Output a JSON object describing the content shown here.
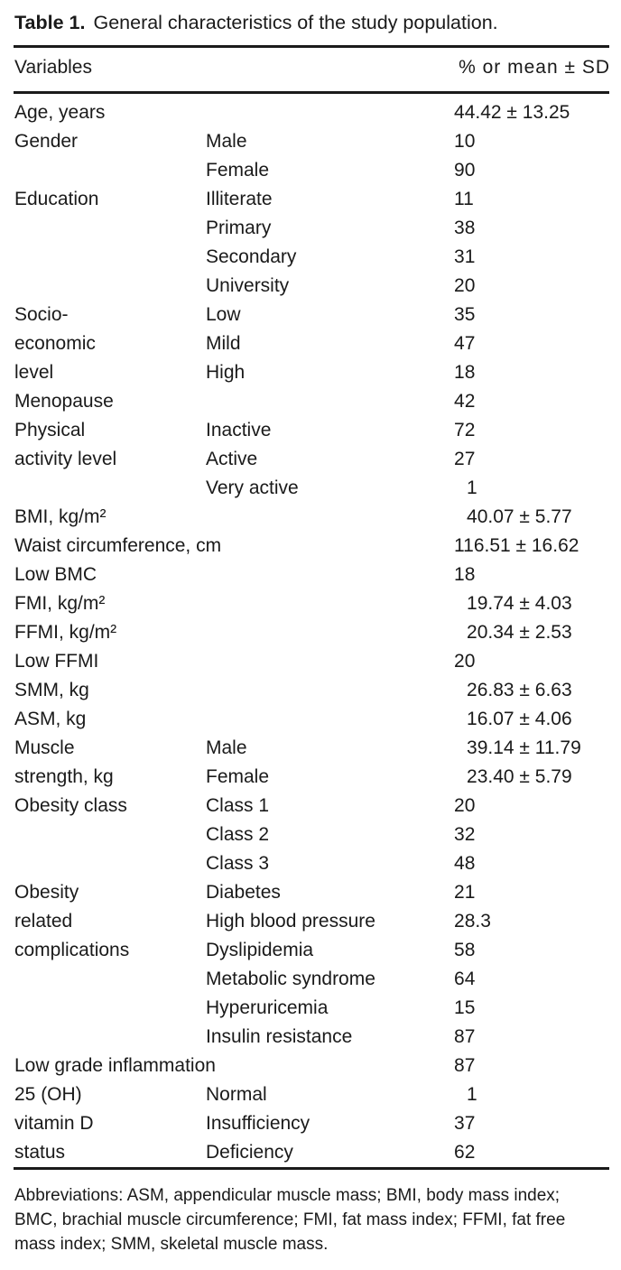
{
  "title": {
    "label": "Table 1.",
    "text": "General characteristics of the study population."
  },
  "header": {
    "col_variables": "Variables",
    "col_value": "% or mean ± SD"
  },
  "table": {
    "groups": [
      {
        "label": "Age, years",
        "span2": true,
        "rows": [
          {
            "val": "44.42 ± 13.25"
          }
        ]
      },
      {
        "label": "Gender",
        "rows": [
          {
            "sub": "Male",
            "val": "10"
          },
          {
            "sub": "Female",
            "val": "90"
          }
        ]
      },
      {
        "label": "Education",
        "rows": [
          {
            "sub": "Illiterate",
            "val": "11"
          },
          {
            "sub": "Primary",
            "val": "38"
          },
          {
            "sub": "Secondary",
            "val": "31"
          },
          {
            "sub": "University",
            "val": "20"
          }
        ]
      },
      {
        "label": "Socio-\neconomic\nlevel",
        "rows": [
          {
            "sub": "Low",
            "val": "35"
          },
          {
            "sub": "Mild",
            "val": "47"
          },
          {
            "sub": "High",
            "val": "18"
          }
        ]
      },
      {
        "label": "Menopause",
        "span2": true,
        "rows": [
          {
            "val": "42"
          }
        ]
      },
      {
        "label": "Physical\nactivity level",
        "rows": [
          {
            "sub": "Inactive",
            "val": "72"
          },
          {
            "sub": "Active",
            "val": "27"
          },
          {
            "sub": "Very active",
            "val": "1",
            "indent": true
          }
        ]
      },
      {
        "label": "BMI, kg/m²",
        "span2": true,
        "rows": [
          {
            "val": "40.07 ± 5.77",
            "indent": true
          }
        ]
      },
      {
        "label": "Waist circumference, cm",
        "span2": true,
        "rows": [
          {
            "val": "116.51 ± 16.62"
          }
        ]
      },
      {
        "label": "Low BMC",
        "span2": true,
        "rows": [
          {
            "val": "18"
          }
        ]
      },
      {
        "label": "FMI, kg/m²",
        "span2": true,
        "rows": [
          {
            "val": "19.74 ± 4.03",
            "indent": true
          }
        ]
      },
      {
        "label": "FFMI, kg/m²",
        "span2": true,
        "rows": [
          {
            "val": "20.34 ± 2.53",
            "indent": true
          }
        ]
      },
      {
        "label": "Low FFMI",
        "span2": true,
        "rows": [
          {
            "val": "20"
          }
        ]
      },
      {
        "label": "SMM, kg",
        "span2": true,
        "rows": [
          {
            "val": "26.83 ± 6.63",
            "indent": true
          }
        ]
      },
      {
        "label": "ASM, kg",
        "span2": true,
        "rows": [
          {
            "val": "16.07 ± 4.06",
            "indent": true
          }
        ]
      },
      {
        "label": "Muscle\nstrength, kg",
        "rows": [
          {
            "sub": "Male",
            "val": "39.14 ± 11.79",
            "indent": true
          },
          {
            "sub": "Female",
            "val": "23.40 ± 5.79",
            "indent": true
          }
        ]
      },
      {
        "label": "Obesity class",
        "rows": [
          {
            "sub": "Class 1",
            "val": "20"
          },
          {
            "sub": "Class 2",
            "val": "32"
          },
          {
            "sub": "Class 3",
            "val": "48"
          }
        ]
      },
      {
        "label": "Obesity\nrelated\ncomplications",
        "rows": [
          {
            "sub": "Diabetes",
            "val": "21"
          },
          {
            "sub": "High blood pressure",
            "val": "28.3"
          },
          {
            "sub": "Dyslipidemia",
            "val": "58"
          },
          {
            "sub": "Metabolic syndrome",
            "val": "64"
          },
          {
            "sub": "Hyperuricemia",
            "val": "15"
          },
          {
            "sub": "Insulin resistance",
            "val": "87"
          }
        ]
      },
      {
        "label": "Low grade inflammation",
        "span2": true,
        "rows": [
          {
            "val": "87"
          }
        ]
      },
      {
        "label": "25 (OH)\nvitamin D\nstatus",
        "rows": [
          {
            "sub": "Normal",
            "val": "1",
            "indent": true
          },
          {
            "sub": "Insufficiency",
            "val": "37"
          },
          {
            "sub": "Deficiency",
            "val": "62"
          }
        ]
      }
    ]
  },
  "footnote": {
    "lines": [
      "Abbreviations: ASM, appendicular muscle mass; BMI, body mass index;",
      "BMC, brachial muscle circumference; FMI, fat mass index; FFMI, fat free",
      "mass index; SMM, skeletal muscle mass."
    ]
  },
  "colors": {
    "text": "#1a1a1a",
    "background": "#ffffff",
    "rule": "#1a1a1a"
  }
}
